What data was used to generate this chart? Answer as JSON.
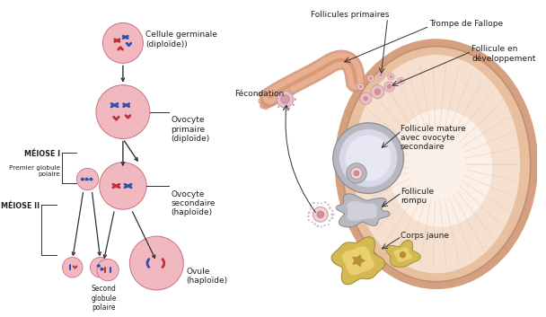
{
  "background_color": "#ffffff",
  "labels": {
    "follicules_primaires": "Follicules primaires",
    "trompe_de_fallope": "Trompe de Fallope",
    "follicule_en_developpement": "Follicule en\ndéveloppement",
    "fecondation": "Fécondation",
    "ovocyte_primaire": "Ovocyte\nprimaire\n(diploïde)",
    "ovocyte_secondaire": "Ovocyte\nsecondaire\n(haploïde)",
    "cellule_germinale": "Cellule germinale\n(diploïde))",
    "meiose_I": "MÉIOSE I",
    "premier_globule": "Premier globule\npolaire",
    "meiose_II": "MÉIOSE II",
    "second_globule": "Second\nglobule\npolaire",
    "ovule": "Ovule\n(haploïde)",
    "follicule_mature": "Follicule mature\navec ovocyte\nsecondaire",
    "follicule_rompu": "Follicule\nrompu",
    "corps_jaune": "Corps jaune"
  },
  "cell_color_light": "#f2b8c0",
  "cell_color_mid": "#e89098",
  "cell_outline": "#c87080",
  "chromosome_red": "#c03030",
  "chromosome_blue": "#3050b0",
  "ovary_outer_color": "#d4a080",
  "ovary_mid_color": "#e8c0a0",
  "ovary_inner_color": "#f5e0d0",
  "ovary_center_color": "#faf0e8",
  "follicle_wall_color": "#b8b8c0",
  "follicle_fluid_color": "#d8d8e8",
  "corps_jaune_color": "#d4b850",
  "corps_jaune_inner": "#e8d070",
  "line_color": "#303030",
  "text_color": "#202020",
  "font_size": 6.5,
  "font_size_small": 5.8
}
